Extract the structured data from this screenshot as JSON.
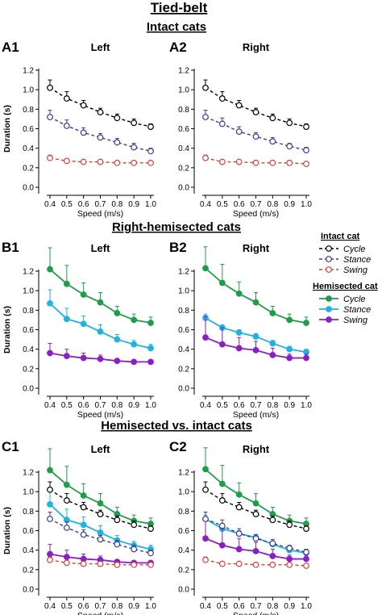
{
  "figure": {
    "title": "Tied-belt",
    "sections": {
      "intact": "Intact cats",
      "right_hemisected": "Right-hemisected cats",
      "hemisected_vs_intact": "Hemisected vs. intact cats"
    }
  },
  "legend": {
    "intact_header": "Intact cat",
    "hemisected_header": "Hemisected cat",
    "intact_items": [
      "Cycle",
      "Stance",
      "Swing"
    ],
    "hemisected_items": [
      "Cycle",
      "Stance",
      "Swing"
    ]
  },
  "colors": {
    "intact_cycle": "#000000",
    "intact_stance": "#3a3d8f",
    "intact_swing": "#d6413c",
    "hemi_cycle": "#1f9e4a",
    "hemi_stance": "#1fb3e0",
    "hemi_swing": "#8a1fc7"
  },
  "chart_data": [
    {
      "id": "A1",
      "type": "line",
      "title": "Left",
      "xlabel": "Speed (m/s)",
      "ylabel": "Duration (s)",
      "x": [
        0.4,
        0.5,
        0.6,
        0.7,
        0.8,
        0.9,
        1.0
      ],
      "xlim": [
        0.4,
        1.0
      ],
      "ylim": [
        0,
        1.2
      ],
      "yticks": [
        "0.0",
        "0.2",
        "0.4",
        "0.6",
        "0.8",
        "1.0",
        "1.2"
      ],
      "xticks": [
        "0.4",
        "0.5",
        "0.6",
        "0.7",
        "0.8",
        "0.9",
        "1.0"
      ],
      "grid": false,
      "series": [
        {
          "name": "Intact Cycle",
          "values": [
            1.02,
            0.91,
            0.84,
            0.77,
            0.71,
            0.66,
            0.62
          ],
          "err": [
            0.08,
            0.07,
            0.05,
            0.04,
            0.04,
            0.04,
            0.03
          ]
        },
        {
          "name": "Intact Stance",
          "values": [
            0.72,
            0.63,
            0.56,
            0.51,
            0.46,
            0.41,
            0.37
          ],
          "err": [
            0.07,
            0.06,
            0.05,
            0.04,
            0.04,
            0.04,
            0.03
          ]
        },
        {
          "name": "Intact Swing",
          "values": [
            0.3,
            0.27,
            0.26,
            0.26,
            0.25,
            0.25,
            0.25
          ],
          "err": [
            0.03,
            0.02,
            0.02,
            0.02,
            0.01,
            0.01,
            0.01
          ]
        }
      ]
    },
    {
      "id": "A2",
      "type": "line",
      "title": "Right",
      "xlabel": "Speed (m/s)",
      "ylabel": "",
      "x": [
        0.4,
        0.5,
        0.6,
        0.7,
        0.8,
        0.9,
        1.0
      ],
      "xlim": [
        0.4,
        1.0
      ],
      "ylim": [
        0,
        1.2
      ],
      "yticks": [
        "0.0",
        "0.2",
        "0.4",
        "0.6",
        "0.8",
        "1.0",
        "1.2"
      ],
      "xticks": [
        "0.4",
        "0.5",
        "0.6",
        "0.7",
        "0.8",
        "0.9",
        "1.0"
      ],
      "grid": false,
      "series": [
        {
          "name": "Intact Cycle",
          "values": [
            1.02,
            0.91,
            0.84,
            0.77,
            0.71,
            0.66,
            0.62
          ],
          "err": [
            0.08,
            0.07,
            0.05,
            0.04,
            0.04,
            0.04,
            0.03
          ]
        },
        {
          "name": "Intact Stance",
          "values": [
            0.72,
            0.65,
            0.57,
            0.52,
            0.47,
            0.42,
            0.38
          ],
          "err": [
            0.07,
            0.06,
            0.05,
            0.04,
            0.04,
            0.03,
            0.03
          ]
        },
        {
          "name": "Intact Swing",
          "values": [
            0.3,
            0.26,
            0.26,
            0.25,
            0.25,
            0.25,
            0.24
          ],
          "err": [
            0.03,
            0.02,
            0.02,
            0.02,
            0.01,
            0.01,
            0.01
          ]
        }
      ]
    },
    {
      "id": "B1",
      "type": "line",
      "title": "Left",
      "xlabel": "Speed (m/s)",
      "ylabel": "Duration (s)",
      "x": [
        0.4,
        0.5,
        0.6,
        0.7,
        0.8,
        0.9,
        1.0
      ],
      "xlim": [
        0.4,
        1.0
      ],
      "ylim": [
        0,
        1.2
      ],
      "yticks": [
        "0.0",
        "0.2",
        "0.4",
        "0.6",
        "0.8",
        "1.0",
        "1.2"
      ],
      "xticks": [
        "0.4",
        "0.5",
        "0.6",
        "0.7",
        "0.8",
        "0.9",
        "1.0"
      ],
      "grid": false,
      "series": [
        {
          "name": "Hemisected Cycle",
          "values": [
            1.22,
            1.07,
            0.96,
            0.88,
            0.77,
            0.7,
            0.67
          ],
          "err": [
            0.22,
            0.19,
            0.12,
            0.1,
            0.07,
            0.06,
            0.06
          ]
        },
        {
          "name": "Hemisected Stance",
          "values": [
            0.87,
            0.71,
            0.66,
            0.58,
            0.5,
            0.45,
            0.41
          ],
          "err": [
            0.14,
            0.11,
            0.08,
            0.07,
            0.05,
            0.04,
            0.04
          ]
        },
        {
          "name": "Hemisected Swing",
          "values": [
            0.36,
            0.33,
            0.31,
            0.3,
            0.28,
            0.27,
            0.27
          ],
          "err": [
            0.1,
            0.07,
            0.05,
            0.04,
            0.02,
            0.02,
            0.02
          ]
        }
      ]
    },
    {
      "id": "B2",
      "type": "line",
      "title": "Right",
      "xlabel": "Speed (m/s)",
      "ylabel": "",
      "x": [
        0.4,
        0.5,
        0.6,
        0.7,
        0.8,
        0.9,
        1.0
      ],
      "xlim": [
        0.4,
        1.0
      ],
      "ylim": [
        0,
        1.2
      ],
      "yticks": [
        "0.0",
        "0.2",
        "0.4",
        "0.6",
        "0.8",
        "1.0",
        "1.2"
      ],
      "xticks": [
        "0.4",
        "0.5",
        "0.6",
        "0.7",
        "0.8",
        "0.9",
        "1.0"
      ],
      "grid": false,
      "series": [
        {
          "name": "Hemisected Cycle",
          "values": [
            1.23,
            1.08,
            0.97,
            0.88,
            0.77,
            0.7,
            0.67
          ],
          "err": [
            0.22,
            0.19,
            0.12,
            0.1,
            0.07,
            0.06,
            0.06
          ]
        },
        {
          "name": "Hemisected Stance",
          "values": [
            0.72,
            0.62,
            0.57,
            0.53,
            0.46,
            0.4,
            0.37
          ],
          "err": [
            0.04,
            0.03,
            0.03,
            0.03,
            0.03,
            0.03,
            0.03
          ]
        },
        {
          "name": "Hemisected Swing",
          "values": [
            0.52,
            0.45,
            0.41,
            0.39,
            0.34,
            0.31,
            0.31
          ],
          "err": [
            0.22,
            0.17,
            0.11,
            0.09,
            0.07,
            0.04,
            0.04
          ]
        }
      ]
    },
    {
      "id": "C1",
      "type": "line",
      "title": "Left",
      "xlabel": "Speed (m/s)",
      "ylabel": "Duration (s)",
      "x": [
        0.4,
        0.5,
        0.6,
        0.7,
        0.8,
        0.9,
        1.0
      ],
      "xlim": [
        0.4,
        1.0
      ],
      "ylim": [
        0,
        1.2
      ],
      "yticks": [
        "0.0",
        "0.2",
        "0.4",
        "0.6",
        "0.8",
        "1.0",
        "1.2"
      ],
      "xticks": [
        "0.4",
        "0.5",
        "0.6",
        "0.7",
        "0.8",
        "0.9",
        "1.0"
      ],
      "grid": false,
      "series": [
        {
          "name": "Hemisected Cycle",
          "values": [
            1.22,
            1.07,
            0.96,
            0.88,
            0.77,
            0.7,
            0.67
          ],
          "err": [
            0.22,
            0.19,
            0.12,
            0.1,
            0.07,
            0.06,
            0.06
          ]
        },
        {
          "name": "Hemisected Stance",
          "values": [
            0.87,
            0.71,
            0.66,
            0.58,
            0.5,
            0.45,
            0.41
          ],
          "err": [
            0.14,
            0.11,
            0.08,
            0.07,
            0.05,
            0.04,
            0.04
          ]
        },
        {
          "name": "Hemisected Swing",
          "values": [
            0.36,
            0.33,
            0.31,
            0.3,
            0.28,
            0.27,
            0.27
          ],
          "err": [
            0.1,
            0.07,
            0.05,
            0.04,
            0.02,
            0.02,
            0.02
          ]
        },
        {
          "name": "Intact Cycle",
          "values": [
            1.02,
            0.91,
            0.84,
            0.77,
            0.71,
            0.66,
            0.62
          ],
          "err": [
            0.08,
            0.07,
            0.05,
            0.04,
            0.04,
            0.04,
            0.03
          ]
        },
        {
          "name": "Intact Stance",
          "values": [
            0.72,
            0.63,
            0.56,
            0.51,
            0.46,
            0.41,
            0.37
          ],
          "err": [
            0.07,
            0.06,
            0.05,
            0.04,
            0.04,
            0.04,
            0.03
          ]
        },
        {
          "name": "Intact Swing",
          "values": [
            0.3,
            0.27,
            0.26,
            0.26,
            0.25,
            0.25,
            0.25
          ],
          "err": [
            0.03,
            0.02,
            0.02,
            0.02,
            0.01,
            0.01,
            0.01
          ]
        }
      ]
    },
    {
      "id": "C2",
      "type": "line",
      "title": "Right",
      "xlabel": "Speed (m/s)",
      "ylabel": "",
      "x": [
        0.4,
        0.5,
        0.6,
        0.7,
        0.8,
        0.9,
        1.0
      ],
      "xlim": [
        0.4,
        1.0
      ],
      "ylim": [
        0,
        1.2
      ],
      "yticks": [
        "0.0",
        "0.2",
        "0.4",
        "0.6",
        "0.8",
        "1.0",
        "1.2"
      ],
      "xticks": [
        "0.4",
        "0.5",
        "0.6",
        "0.7",
        "0.8",
        "0.9",
        "1.0"
      ],
      "grid": false,
      "series": [
        {
          "name": "Hemisected Cycle",
          "values": [
            1.23,
            1.08,
            0.97,
            0.88,
            0.77,
            0.7,
            0.67
          ],
          "err": [
            0.22,
            0.19,
            0.12,
            0.1,
            0.07,
            0.06,
            0.06
          ]
        },
        {
          "name": "Hemisected Stance",
          "values": [
            0.72,
            0.62,
            0.57,
            0.53,
            0.46,
            0.4,
            0.37
          ],
          "err": [
            0.04,
            0.03,
            0.03,
            0.03,
            0.03,
            0.03,
            0.03
          ]
        },
        {
          "name": "Hemisected Swing",
          "values": [
            0.52,
            0.45,
            0.41,
            0.39,
            0.34,
            0.31,
            0.31
          ],
          "err": [
            0.22,
            0.17,
            0.11,
            0.09,
            0.07,
            0.04,
            0.04
          ]
        },
        {
          "name": "Intact Cycle",
          "values": [
            1.02,
            0.91,
            0.84,
            0.77,
            0.71,
            0.66,
            0.62
          ],
          "err": [
            0.08,
            0.07,
            0.05,
            0.04,
            0.04,
            0.04,
            0.03
          ]
        },
        {
          "name": "Intact Stance",
          "values": [
            0.72,
            0.65,
            0.57,
            0.52,
            0.47,
            0.42,
            0.38
          ],
          "err": [
            0.07,
            0.06,
            0.05,
            0.04,
            0.04,
            0.03,
            0.03
          ]
        },
        {
          "name": "Intact Swing",
          "values": [
            0.3,
            0.26,
            0.26,
            0.25,
            0.25,
            0.25,
            0.24
          ],
          "err": [
            0.03,
            0.02,
            0.02,
            0.02,
            0.01,
            0.01,
            0.01
          ]
        }
      ]
    }
  ]
}
